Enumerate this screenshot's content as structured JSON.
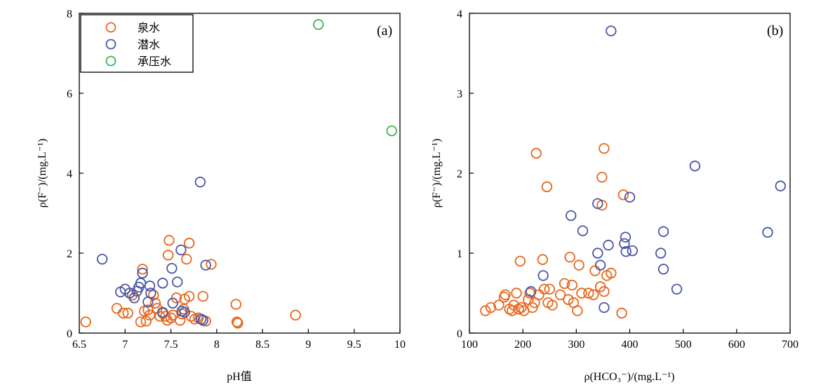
{
  "colors": {
    "spring": "#E8661B",
    "phreatic": "#4A56A6",
    "confined": "#3BB54A"
  },
  "chart_data": [
    {
      "type": "scatter",
      "panel_label": "(a)",
      "xlabel": "pH值",
      "ylabel": "ρ(F⁻)/(mg.L⁻¹)",
      "xlim": [
        6.5,
        10
      ],
      "ylim": [
        0,
        8
      ],
      "xticks": [
        "6.5",
        "7",
        "7.5",
        "8",
        "8.5",
        "9",
        "9.5",
        "10"
      ],
      "yticks": [
        "0",
        "2",
        "4",
        "6",
        "8"
      ],
      "legend": {
        "placement": "top-left",
        "entries": [
          "泉水",
          "潜水",
          "承压水"
        ]
      },
      "series": [
        {
          "name": "泉水",
          "points": [
            [
              6.57,
              0.28
            ],
            [
              6.91,
              0.62
            ],
            [
              6.98,
              0.5
            ],
            [
              7.03,
              0.5
            ],
            [
              7.08,
              0.95
            ],
            [
              7.17,
              0.28
            ],
            [
              7.19,
              1.6
            ],
            [
              7.21,
              0.55
            ],
            [
              7.23,
              0.3
            ],
            [
              7.25,
              0.58
            ],
            [
              7.27,
              0.45
            ],
            [
              7.31,
              0.95
            ],
            [
              7.33,
              0.75
            ],
            [
              7.35,
              0.62
            ],
            [
              7.38,
              0.42
            ],
            [
              7.41,
              0.5
            ],
            [
              7.44,
              0.42
            ],
            [
              7.46,
              0.32
            ],
            [
              7.47,
              1.95
            ],
            [
              7.48,
              2.32
            ],
            [
              7.5,
              0.38
            ],
            [
              7.52,
              0.45
            ],
            [
              7.56,
              0.88
            ],
            [
              7.6,
              0.32
            ],
            [
              7.62,
              0.48
            ],
            [
              7.64,
              0.6
            ],
            [
              7.65,
              0.85
            ],
            [
              7.67,
              1.85
            ],
            [
              7.7,
              2.25
            ],
            [
              7.7,
              0.92
            ],
            [
              7.72,
              0.42
            ],
            [
              7.76,
              0.35
            ],
            [
              7.8,
              0.38
            ],
            [
              7.85,
              0.92
            ],
            [
              7.88,
              0.3
            ],
            [
              7.94,
              1.72
            ],
            [
              8.21,
              0.72
            ],
            [
              8.22,
              0.28
            ],
            [
              8.23,
              0.25
            ],
            [
              8.86,
              0.45
            ]
          ]
        },
        {
          "name": "潜水",
          "points": [
            [
              6.75,
              1.85
            ],
            [
              6.95,
              1.03
            ],
            [
              7.0,
              1.1
            ],
            [
              7.05,
              1.0
            ],
            [
              7.1,
              0.88
            ],
            [
              7.13,
              1.05
            ],
            [
              7.15,
              1.15
            ],
            [
              7.17,
              1.25
            ],
            [
              7.19,
              1.5
            ],
            [
              7.25,
              0.78
            ],
            [
              7.27,
              1.18
            ],
            [
              7.28,
              1.0
            ],
            [
              7.41,
              1.25
            ],
            [
              7.41,
              0.52
            ],
            [
              7.51,
              1.62
            ],
            [
              7.52,
              0.75
            ],
            [
              7.57,
              1.28
            ],
            [
              7.61,
              2.08
            ],
            [
              7.62,
              0.55
            ],
            [
              7.65,
              0.52
            ],
            [
              7.82,
              3.78
            ],
            [
              7.83,
              0.35
            ],
            [
              7.85,
              0.32
            ],
            [
              7.88,
              1.7
            ]
          ]
        },
        {
          "name": "承压水",
          "points": [
            [
              9.11,
              7.72
            ],
            [
              9.91,
              5.06
            ]
          ]
        }
      ]
    },
    {
      "type": "scatter",
      "panel_label": "(b)",
      "xlabel": "ρ(HCO₃⁻)/(mg.L⁻¹)",
      "ylabel": "ρ(F⁻)/(mg.L⁻¹)",
      "xlim": [
        100,
        700
      ],
      "ylim": [
        0,
        4
      ],
      "xticks": [
        "100",
        "200",
        "300",
        "400",
        "500",
        "600",
        "700"
      ],
      "yticks": [
        "0",
        "1",
        "2",
        "3",
        "4"
      ],
      "series": [
        {
          "name": "泉水",
          "points": [
            [
              130,
              0.28
            ],
            [
              140,
              0.32
            ],
            [
              155,
              0.35
            ],
            [
              165,
              0.45
            ],
            [
              167,
              0.48
            ],
            [
              175,
              0.3
            ],
            [
              180,
              0.28
            ],
            [
              183,
              0.35
            ],
            [
              188,
              0.5
            ],
            [
              192,
              0.3
            ],
            [
              195,
              0.9
            ],
            [
              197,
              0.32
            ],
            [
              202,
              0.28
            ],
            [
              210,
              0.42
            ],
            [
              213,
              0.5
            ],
            [
              218,
              0.32
            ],
            [
              222,
              0.38
            ],
            [
              225,
              2.25
            ],
            [
              230,
              0.48
            ],
            [
              237,
              0.92
            ],
            [
              240,
              0.55
            ],
            [
              245,
              1.83
            ],
            [
              247,
              0.38
            ],
            [
              250,
              0.55
            ],
            [
              255,
              0.35
            ],
            [
              270,
              0.48
            ],
            [
              278,
              0.62
            ],
            [
              285,
              0.42
            ],
            [
              288,
              0.95
            ],
            [
              292,
              0.6
            ],
            [
              295,
              0.38
            ],
            [
              302,
              0.28
            ],
            [
              305,
              0.85
            ],
            [
              310,
              0.5
            ],
            [
              323,
              0.5
            ],
            [
              332,
              0.48
            ],
            [
              335,
              0.78
            ],
            [
              345,
              0.58
            ],
            [
              348,
              1.95
            ],
            [
              348,
              1.6
            ],
            [
              352,
              2.31
            ],
            [
              352,
              0.52
            ],
            [
              357,
              0.72
            ],
            [
              365,
              0.75
            ],
            [
              385,
              0.25
            ],
            [
              388,
              1.73
            ]
          ]
        },
        {
          "name": "潜水",
          "points": [
            [
              215,
              0.52
            ],
            [
              238,
              0.72
            ],
            [
              290,
              1.47
            ],
            [
              312,
              1.28
            ],
            [
              340,
              1.0
            ],
            [
              340,
              1.62
            ],
            [
              345,
              0.85
            ],
            [
              352,
              0.32
            ],
            [
              360,
              1.1
            ],
            [
              365,
              3.78
            ],
            [
              390,
              1.12
            ],
            [
              392,
              1.2
            ],
            [
              393,
              1.02
            ],
            [
              400,
              1.7
            ],
            [
              405,
              1.03
            ],
            [
              458,
              1.0
            ],
            [
              463,
              1.27
            ],
            [
              463,
              0.8
            ],
            [
              488,
              0.55
            ],
            [
              522,
              2.09
            ],
            [
              658,
              1.26
            ],
            [
              682,
              1.84
            ]
          ]
        }
      ]
    }
  ]
}
